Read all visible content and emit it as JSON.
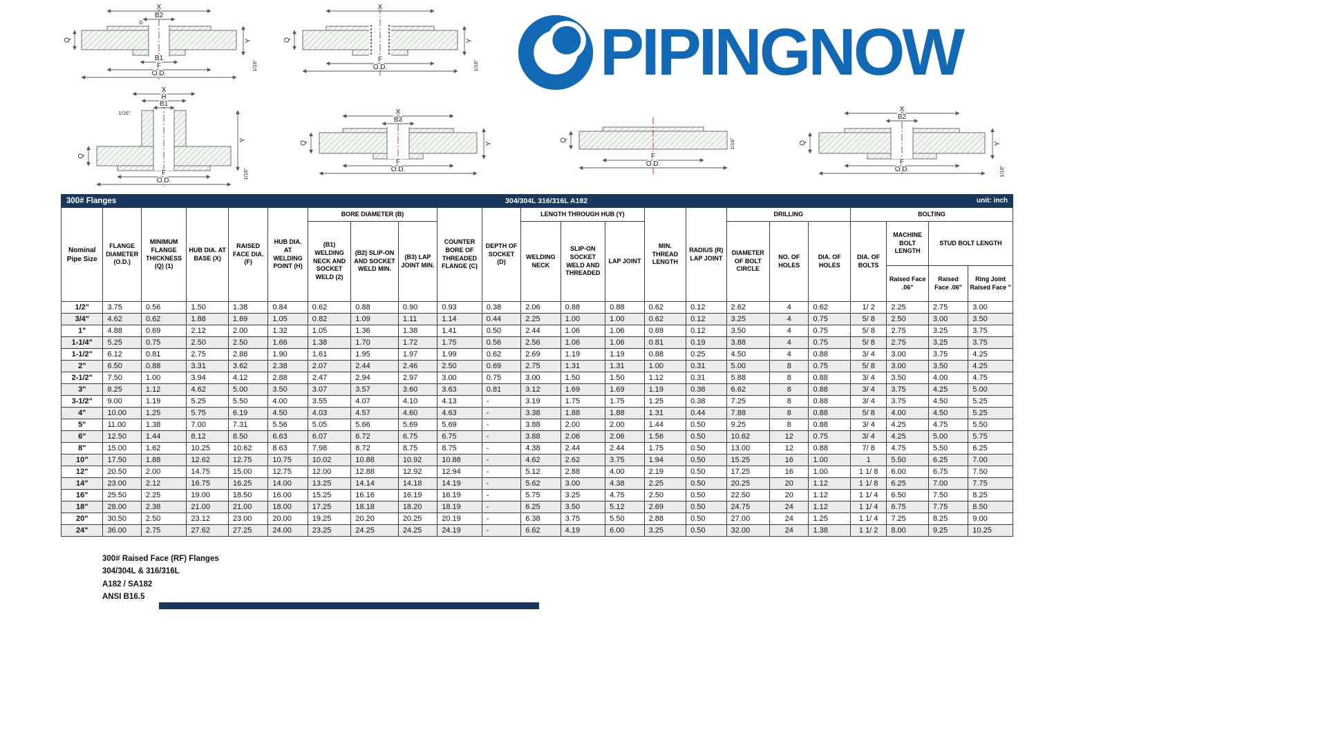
{
  "colors": {
    "header_bar": "#17375d",
    "logo_blue": "#1169b5",
    "row_alt": "#ececec"
  },
  "logo": {
    "text": "PIPINGNOW"
  },
  "diagram_labels": {
    "x": "X",
    "b1": "B1",
    "b2": "B2",
    "b3": "B3",
    "f": "F",
    "od": "O.D.",
    "q": "Q",
    "y": "Y",
    "h": "H",
    "d": "D",
    "sixteenth": "1/16\""
  },
  "table": {
    "title": "300# Flanges",
    "material": "304/304L 316/316L A182",
    "unit": "unit: inch",
    "headers": {
      "size": "Nominal Pipe Size",
      "od": "FLANGE DIAMETER (O.D.)",
      "thickness": "MINIMUM FLANGE THICKNESS (Q) (1)",
      "hub_base": "HUB DIA. AT BASE (X)",
      "raised_face": "RAISED FACE DIA. (F)",
      "hub_weld": "HUB DIA. AT WELDING POINT (H)",
      "bore_group": "BORE DIAMETER (B)",
      "b1": "(B1) WELDING NECK AND SOCKET WELD (2)",
      "b2": "(B2) SLIP-ON AND SOCKET WELD MIN.",
      "b3": "(B3) LAP JOINT MIN.",
      "counter_bore": "COUNTER BORE OF THREADED FLANGE (C)",
      "socket_depth": "DEPTH OF SOCKET (D)",
      "hub_group": "LENGTH THROUGH HUB (Y)",
      "welding_neck": "WELDING NECK",
      "slip_on": "SLIP-ON SOCKET WELD AND THREADED",
      "lap_joint": "LAP JOINT",
      "min_thread": "MIN. THREAD LENGTH",
      "radius": "RADIUS (R) LAP JOINT",
      "drilling_group": "DRILLING",
      "bolt_circle": "DIAMETER OF BOLT CIRCLE",
      "num_holes": "NO. OF HOLES",
      "hole_dia": "DIA. OF HOLES",
      "bolting_group": "BOLTING",
      "bolt_dia": "DIA. OF BOLTS",
      "machine_group": "MACHINE BOLT LENGTH",
      "machine_rf": "Raised Face .06\"",
      "stud_group": "STUD BOLT LENGTH",
      "stud_rf": "Raised Face .06\"",
      "stud_rj": "Ring Joint Raised Face \""
    },
    "rows": [
      [
        "1/2\"",
        "3.75",
        "0.56",
        "1.50",
        "1.38",
        "0.84",
        "0.62",
        "0.88",
        "0.90",
        "0.93",
        "0.38",
        "2.06",
        "0.88",
        "0.88",
        "0.62",
        "0.12",
        "2.62",
        "4",
        "0.62",
        "1/ 2",
        "2.25",
        "2.75",
        "3.00"
      ],
      [
        "3/4\"",
        "4.62",
        "0.62",
        "1.88",
        "1.69",
        "1.05",
        "0.82",
        "1.09",
        "1.11",
        "1.14",
        "0.44",
        "2.25",
        "1.00",
        "1.00",
        "0.62",
        "0.12",
        "3.25",
        "4",
        "0.75",
        "5/ 8",
        "2.50",
        "3.00",
        "3.50"
      ],
      [
        "1\"",
        "4.88",
        "0.69",
        "2.12",
        "2.00",
        "1.32",
        "1.05",
        "1.36",
        "1.38",
        "1.41",
        "0.50",
        "2.44",
        "1.06",
        "1.06",
        "0.69",
        "0.12",
        "3.50",
        "4",
        "0.75",
        "5/ 8",
        "2.75",
        "3.25",
        "3.75"
      ],
      [
        "1-1/4\"",
        "5.25",
        "0.75",
        "2.50",
        "2.50",
        "1.66",
        "1.38",
        "1.70",
        "1.72",
        "1.75",
        "0.56",
        "2.56",
        "1.06",
        "1.06",
        "0.81",
        "0.19",
        "3.88",
        "4",
        "0.75",
        "5/ 8",
        "2.75",
        "3.25",
        "3.75"
      ],
      [
        "1-1/2\"",
        "6.12",
        "0.81",
        "2.75",
        "2.88",
        "1.90",
        "1.61",
        "1.95",
        "1.97",
        "1.99",
        "0.62",
        "2.69",
        "1.19",
        "1.19",
        "0.88",
        "0.25",
        "4.50",
        "4",
        "0.88",
        "3/ 4",
        "3.00",
        "3.75",
        "4.25"
      ],
      [
        "2\"",
        "6.50",
        "0.88",
        "3.31",
        "3.62",
        "2.38",
        "2.07",
        "2.44",
        "2.46",
        "2.50",
        "0.69",
        "2.75",
        "1.31",
        "1.31",
        "1.00",
        "0.31",
        "5.00",
        "8",
        "0.75",
        "5/ 8",
        "3.00",
        "3.50",
        "4.25"
      ],
      [
        "2-1/2\"",
        "7.50",
        "1.00",
        "3.94",
        "4.12",
        "2.88",
        "2.47",
        "2.94",
        "2.97",
        "3.00",
        "0.75",
        "3.00",
        "1.50",
        "1.50",
        "1.12",
        "0.31",
        "5.88",
        "8",
        "0.88",
        "3/ 4",
        "3.50",
        "4.00",
        "4.75"
      ],
      [
        "3\"",
        "8.25",
        "1.12",
        "4.62",
        "5.00",
        "3.50",
        "3.07",
        "3.57",
        "3.60",
        "3.63",
        "0.81",
        "3.12",
        "1.69",
        "1.69",
        "1.19",
        "0.38",
        "6.62",
        "8",
        "0.88",
        "3/ 4",
        "3.75",
        "4.25",
        "5.00"
      ],
      [
        "3-1/2\"",
        "9.00",
        "1.19",
        "5.25",
        "5.50",
        "4.00",
        "3.55",
        "4.07",
        "4.10",
        "4.13",
        "-",
        "3.19",
        "1.75",
        "1.75",
        "1.25",
        "0.38",
        "7.25",
        "8",
        "0.88",
        "3/ 4",
        "3.75",
        "4.50",
        "5.25"
      ],
      [
        "4\"",
        "10.00",
        "1.25",
        "5.75",
        "6.19",
        "4.50",
        "4.03",
        "4.57",
        "4.60",
        "4.63",
        "-",
        "3.38",
        "1.88",
        "1.88",
        "1.31",
        "0.44",
        "7.88",
        "8",
        "0.88",
        "5/ 8",
        "4.00",
        "4.50",
        "5.25"
      ],
      [
        "5\"",
        "11.00",
        "1.38",
        "7.00",
        "7.31",
        "5.56",
        "5.05",
        "5.66",
        "5.69",
        "5.69",
        "-",
        "3.88",
        "2.00",
        "2.00",
        "1.44",
        "0.50",
        "9.25",
        "8",
        "0.88",
        "3/ 4",
        "4.25",
        "4.75",
        "5.50"
      ],
      [
        "6\"",
        "12.50",
        "1.44",
        "8.12",
        "8.50",
        "6.63",
        "6.07",
        "6.72",
        "6.75",
        "6.75",
        "-",
        "3.88",
        "2.06",
        "2.06",
        "1.56",
        "0.50",
        "10.62",
        "12",
        "0.75",
        "3/ 4",
        "4.25",
        "5.00",
        "5.75"
      ],
      [
        "8\"",
        "15.00",
        "1.62",
        "10.25",
        "10.62",
        "8.63",
        "7.98",
        "8.72",
        "8.75",
        "8.75",
        "-",
        "4.38",
        "2.44",
        "2.44",
        "1.75",
        "0.50",
        "13.00",
        "12",
        "0.88",
        "7/ 8",
        "4.75",
        "5.50",
        "6.25"
      ],
      [
        "10\"",
        "17.50",
        "1.88",
        "12.62",
        "12.75",
        "10.75",
        "10.02",
        "10.88",
        "10.92",
        "10.88",
        "-",
        "4.62",
        "2.62",
        "3.75",
        "1.94",
        "0.50",
        "15.25",
        "16",
        "1.00",
        "1",
        "5.50",
        "6.25",
        "7.00"
      ],
      [
        "12\"",
        "20.50",
        "2.00",
        "14.75",
        "15.00",
        "12.75",
        "12.00",
        "12.88",
        "12.92",
        "12.94",
        "-",
        "5.12",
        "2.88",
        "4.00",
        "2.19",
        "0.50",
        "17.25",
        "16",
        "1.00",
        "1 1/ 8",
        "6.00",
        "6.75",
        "7.50"
      ],
      [
        "14\"",
        "23.00",
        "2.12",
        "16.75",
        "16.25",
        "14.00",
        "13.25",
        "14.14",
        "14.18",
        "14.19",
        "-",
        "5.62",
        "3.00",
        "4.38",
        "2.25",
        "0.50",
        "20.25",
        "20",
        "1.12",
        "1 1/ 8",
        "6.25",
        "7.00",
        "7.75"
      ],
      [
        "16\"",
        "25.50",
        "2.25",
        "19.00",
        "18.50",
        "16.00",
        "15.25",
        "16.16",
        "16.19",
        "16.19",
        "-",
        "5.75",
        "3.25",
        "4.75",
        "2.50",
        "0.50",
        "22.50",
        "20",
        "1.12",
        "1 1/ 4",
        "6.50",
        "7.50",
        "8.25"
      ],
      [
        "18\"",
        "28.00",
        "2.38",
        "21.00",
        "21.00",
        "18.00",
        "17.25",
        "18.18",
        "18.20",
        "18.19",
        "-",
        "6.25",
        "3.50",
        "5.12",
        "2.69",
        "0.50",
        "24.75",
        "24",
        "1.12",
        "1 1/ 4",
        "6.75",
        "7.75",
        "8.50"
      ],
      [
        "20\"",
        "30.50",
        "2.50",
        "23.12",
        "23.00",
        "20.00",
        "19.25",
        "20.20",
        "20.25",
        "20.19",
        "-",
        "6.38",
        "3.75",
        "5.50",
        "2.88",
        "0.50",
        "27.00",
        "24",
        "1.25",
        "1 1/ 4",
        "7.25",
        "8.25",
        "9.00"
      ],
      [
        "24\"",
        "36.00",
        "2.75",
        "27.62",
        "27.25",
        "24.00",
        "23.25",
        "24.25",
        "24.25",
        "24.19",
        "-",
        "6.62",
        "4.19",
        "6.00",
        "3.25",
        "0.50",
        "32.00",
        "24",
        "1.38",
        "1 1/ 2",
        "8.00",
        "9.25",
        "10.25"
      ]
    ]
  },
  "footer": {
    "line1": "300# Raised Face (RF) Flanges",
    "line2": "304/304L & 316/316L",
    "line3": "A182 / SA182",
    "line4": "ANSI B16.5"
  }
}
